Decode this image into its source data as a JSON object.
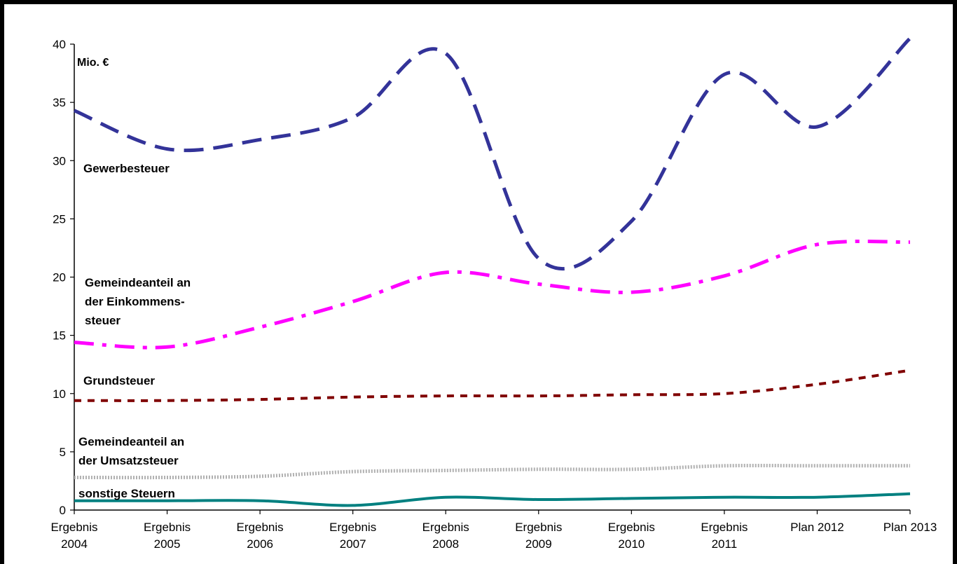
{
  "colors": {
    "gewerbesteuer": "#333399",
    "einkommensteuer": "#ff00ff",
    "grundsteuer": "#800000",
    "umsatzsteuer": "#b0b0b0",
    "sonstige": "#008080"
  },
  "chart_data": {
    "type": "line",
    "unit": "Mio. €",
    "ylim": [
      0,
      40
    ],
    "yticks": [
      "0",
      "5",
      "10",
      "15",
      "20",
      "25",
      "30",
      "35",
      "40"
    ],
    "grid": false,
    "legend": "inline labels",
    "categories": [
      [
        "Ergebnis",
        "2004"
      ],
      [
        "Ergebnis",
        "2005"
      ],
      [
        "Ergebnis",
        "2006"
      ],
      [
        "Ergebnis",
        "2007"
      ],
      [
        "Ergebnis",
        "2008"
      ],
      [
        "Ergebnis",
        "2009"
      ],
      [
        "Ergebnis",
        "2010"
      ],
      [
        "Ergebnis",
        "2011"
      ],
      [
        "Plan 2012"
      ],
      [
        "Plan 2013"
      ]
    ],
    "series": [
      {
        "name": "Gewerbesteuer",
        "label_lines": [
          "Gewerbesteuer"
        ],
        "values": [
          34.3,
          31.0,
          31.8,
          33.7,
          39.2,
          21.6,
          24.8,
          37.4,
          32.9,
          40.5
        ]
      },
      {
        "name": "Gemeindeanteil an der Einkommenssteuer",
        "label_lines": [
          "Gemeindeanteil an",
          "der Einkommens-",
          "steuer"
        ],
        "values": [
          14.4,
          14.0,
          15.7,
          17.9,
          20.4,
          19.4,
          18.7,
          20.1,
          22.8,
          23.0
        ]
      },
      {
        "name": "Grundsteuer",
        "label_lines": [
          "Grundsteuer"
        ],
        "values": [
          9.4,
          9.4,
          9.5,
          9.7,
          9.8,
          9.8,
          9.9,
          10.0,
          10.8,
          12.0
        ]
      },
      {
        "name": "Gemeindeanteil an der Umsatzsteuer",
        "label_lines": [
          "Gemeindeanteil an",
          "der Umsatzsteuer"
        ],
        "values": [
          2.8,
          2.8,
          2.9,
          3.3,
          3.4,
          3.5,
          3.5,
          3.8,
          3.8,
          3.8
        ]
      },
      {
        "name": "sonstige Steuern",
        "label_lines": [
          "sonstige Steuern"
        ],
        "values": [
          0.8,
          0.8,
          0.8,
          0.4,
          1.1,
          0.9,
          1.0,
          1.1,
          1.1,
          1.4
        ]
      }
    ]
  }
}
